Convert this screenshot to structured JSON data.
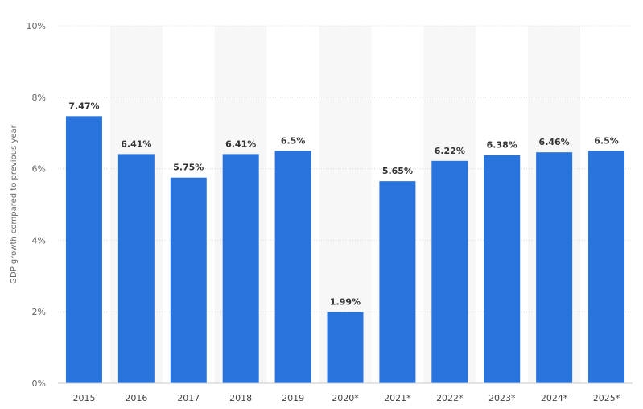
{
  "chart_data": {
    "type": "bar",
    "categories": [
      "2015",
      "2016",
      "2017",
      "2018",
      "2019",
      "2020*",
      "2021*",
      "2022*",
      "2023*",
      "2024*",
      "2025*"
    ],
    "values": [
      7.47,
      6.41,
      5.75,
      6.41,
      6.5,
      1.99,
      5.65,
      6.22,
      6.38,
      6.46,
      6.5
    ],
    "value_labels": [
      "7.47%",
      "6.41%",
      "5.75%",
      "6.41%",
      "6.5%",
      "1.99%",
      "5.65%",
      "6.22%",
      "6.38%",
      "6.46%",
      "6.5%"
    ],
    "title": "",
    "xlabel": "",
    "ylabel": "GDP growth compared to previous year",
    "ylim": [
      0,
      10
    ],
    "yticks": [
      0,
      2,
      4,
      6,
      8,
      10
    ],
    "ytick_labels": [
      "0%",
      "2%",
      "4%",
      "6%",
      "8%",
      "10%"
    ],
    "grid": true,
    "bar_color": "#2874dc",
    "alt_band_color": "#f7f7f7",
    "grid_color": "#d9d9d9"
  }
}
